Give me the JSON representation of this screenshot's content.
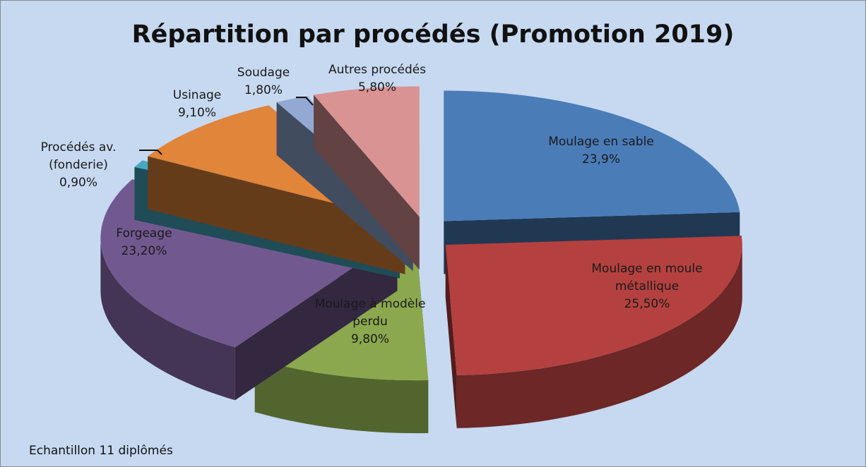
{
  "chart_data": {
    "type": "pie3d",
    "title": "Répartition par procédés (Promotion 2019)",
    "categories": [
      "Moulage en sable",
      "Moulage en moule métallique",
      "Moulage à modèle perdu",
      "Forgeage",
      "Procédés av. (fonderie)",
      "Usinage",
      "Soudage",
      "Autres procédés"
    ],
    "values": [
      23.9,
      25.5,
      9.8,
      23.2,
      0.9,
      9.1,
      1.8,
      5.8
    ],
    "value_labels": [
      "23,9%",
      "25,50%",
      "9,80%",
      "23,20%",
      "0,90%",
      "9,10%",
      "1,80%",
      "5,80%"
    ],
    "colors": [
      "#4a7cb8",
      "#b4413f",
      "#8ba84e",
      "#71598f",
      "#45a9c2",
      "#e0853a",
      "#93a8d3",
      "#d99392"
    ],
    "annotation": "Echantillon 11 diplômés"
  }
}
